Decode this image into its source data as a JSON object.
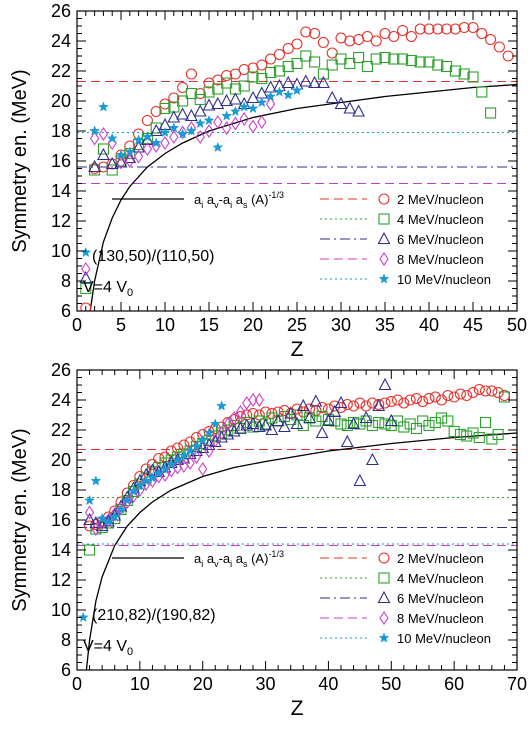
{
  "chart_data": [
    {
      "type": "scatter",
      "title": "",
      "xlabel": "Z",
      "ylabel": "Symmetry en. (MeV)",
      "xlim": [
        0,
        50
      ],
      "ylim": [
        6,
        26
      ],
      "xticks": [
        "0",
        "5",
        "10",
        "15",
        "20",
        "25",
        "30",
        "35",
        "40",
        "45",
        "50"
      ],
      "yticks": [
        "6",
        "8",
        "10",
        "12",
        "14",
        "16",
        "18",
        "20",
        "22",
        "24",
        "26"
      ],
      "grid": false,
      "legend_position": "bottom-right",
      "annotations": {
        "system": "(130,50)/(110,50)",
        "volume": "V=4 V",
        "volume_sub": "0"
      },
      "formula": {
        "main": "a",
        "s1": "i",
        "m2": " a",
        "s2": "v",
        "m3": "-a",
        "s3": "i",
        "m4": " a",
        "s4": "s",
        "m5": " (A)",
        "sup": "-1/3"
      },
      "curve": {
        "name": "a_i a_v - a_i a_s (A)^-1/3",
        "x": [
          1.5,
          2,
          3,
          4,
          5,
          6,
          8,
          10,
          12,
          15,
          20,
          25,
          30,
          35,
          40,
          45,
          50
        ],
        "y": [
          6.0,
          8.0,
          10.6,
          12.2,
          13.4,
          14.3,
          15.6,
          16.5,
          17.2,
          18.0,
          18.9,
          19.5,
          19.9,
          20.3,
          20.6,
          20.9,
          21.1
        ]
      },
      "series": [
        {
          "name": "2 MeV/nucleon",
          "marker": "circle",
          "color": "#e8302a",
          "baseline": 21.3,
          "x": [
            1,
            2,
            3,
            4,
            5,
            6,
            7,
            8,
            9,
            10,
            11,
            12,
            13,
            14,
            15,
            16,
            17,
            18,
            19,
            20,
            21,
            22,
            23,
            24,
            25,
            26,
            27,
            28,
            29,
            30,
            31,
            32,
            33,
            34,
            35,
            36,
            37,
            38,
            39,
            40,
            41,
            42,
            43,
            44,
            45,
            46,
            47,
            48,
            49
          ],
          "y": [
            6.2,
            15.5,
            15.6,
            15.8,
            16.4,
            17.0,
            17.8,
            18.7,
            19.3,
            19.8,
            20.2,
            20.9,
            21.8,
            20.5,
            21.2,
            21.4,
            21.7,
            21.8,
            22.1,
            22.2,
            22.4,
            22.8,
            23.1,
            23.5,
            23.8,
            24.6,
            24.5,
            23.9,
            23.2,
            24.2,
            24.0,
            24.1,
            24.3,
            24.0,
            24.5,
            24.3,
            24.7,
            24.3,
            24.8,
            24.8,
            24.8,
            24.8,
            24.8,
            24.9,
            24.9,
            24.5,
            24.1,
            23.6,
            23.0
          ]
        },
        {
          "name": "4 MeV/nucleon",
          "marker": "square",
          "color": "#2ea02e",
          "baseline": 17.9,
          "x": [
            1,
            2,
            3,
            4,
            5,
            6,
            7,
            8,
            9,
            10,
            11,
            12,
            13,
            14,
            15,
            16,
            17,
            18,
            19,
            20,
            21,
            22,
            23,
            24,
            25,
            26,
            27,
            28,
            29,
            30,
            31,
            32,
            33,
            34,
            35,
            36,
            37,
            38,
            39,
            40,
            41,
            42,
            43,
            44,
            45,
            46,
            47
          ],
          "y": [
            7.5,
            15.4,
            16.8,
            15.4,
            16.0,
            16.5,
            17.1,
            17.5,
            18.2,
            19.5,
            19.6,
            20.0,
            20.5,
            20.1,
            20.6,
            20.8,
            21.2,
            20.8,
            21.0,
            21.6,
            21.5,
            21.9,
            22.0,
            22.3,
            22.5,
            23.0,
            22.6,
            21.8,
            22.4,
            22.8,
            22.5,
            22.9,
            22.3,
            22.8,
            22.9,
            22.8,
            22.8,
            22.7,
            22.6,
            22.6,
            22.4,
            22.3,
            22.0,
            21.8,
            21.6,
            20.6,
            19.2
          ]
        },
        {
          "name": "6 MeV/nucleon",
          "marker": "triangle",
          "color": "#2e2e8c",
          "baseline": 15.6,
          "x": [
            1,
            2,
            3,
            4,
            5,
            6,
            7,
            8,
            9,
            10,
            11,
            12,
            13,
            14,
            15,
            16,
            17,
            18,
            19,
            20,
            21,
            22,
            23,
            24,
            25,
            26,
            27,
            28,
            29,
            30,
            31,
            32
          ],
          "y": [
            8.2,
            15.6,
            16.4,
            15.8,
            15.9,
            16.2,
            16.9,
            17.4,
            18.0,
            18.4,
            18.9,
            19.1,
            19.0,
            19.3,
            19.7,
            19.8,
            20.0,
            20.1,
            19.8,
            20.2,
            20.5,
            20.9,
            21.0,
            21.2,
            21.1,
            21.3,
            21.2,
            21.2,
            20.2,
            19.8,
            19.5,
            19.3
          ]
        },
        {
          "name": "8 MeV/nucleon",
          "marker": "diamond",
          "color": "#cc3ccc",
          "baseline": 14.5,
          "x": [
            1,
            2,
            3,
            4,
            5,
            6,
            7,
            8,
            9,
            10,
            11,
            12,
            13,
            14,
            15,
            16,
            17,
            18,
            19,
            20,
            21,
            22
          ],
          "y": [
            8.8,
            17.5,
            17.8,
            17.2,
            15.9,
            16.0,
            16.3,
            16.8,
            17.0,
            17.2,
            17.6,
            17.9,
            18.2,
            17.6,
            18.0,
            18.6,
            18.2,
            18.5,
            18.8,
            18.3,
            18.6,
            19.8
          ]
        },
        {
          "name": "10 MeV/nucleon",
          "marker": "star",
          "color": "#1a9ad6",
          "baseline": 17.9,
          "x": [
            1,
            2,
            3,
            4,
            5,
            6,
            7,
            8,
            9,
            10,
            11,
            12,
            13,
            14,
            15,
            16,
            17,
            18,
            19,
            20,
            21,
            22,
            23,
            24,
            25
          ],
          "y": [
            9.9,
            18.0,
            19.6,
            17.5,
            16.4,
            16.6,
            17.4,
            17.6,
            17.2,
            17.9,
            18.2,
            17.8,
            18.0,
            18.5,
            18.7,
            16.9,
            19.0,
            19.3,
            19.6,
            19.5,
            19.9,
            20.3,
            20.6,
            20.4,
            20.7
          ]
        }
      ]
    },
    {
      "type": "scatter",
      "title": "",
      "xlabel": "Z",
      "ylabel": "Symmetry en. (MeV)",
      "xlim": [
        0,
        70
      ],
      "ylim": [
        6,
        26
      ],
      "xticks": [
        "0",
        "10",
        "20",
        "30",
        "40",
        "50",
        "60",
        "70"
      ],
      "yticks": [
        "6",
        "8",
        "10",
        "12",
        "14",
        "16",
        "18",
        "20",
        "22",
        "24",
        "26"
      ],
      "grid": false,
      "legend_position": "bottom-right",
      "annotations": {
        "system": "(210,82)/(190,82)",
        "volume": "V=4 V",
        "volume_sub": "0"
      },
      "formula": {
        "main": "a",
        "s1": "i",
        "m2": " a",
        "s2": "v",
        "m3": "-a",
        "s3": "i",
        "m4": " a",
        "s4": "s",
        "m5": " (A)",
        "sup": "-1/3"
      },
      "curve": {
        "name": "a_i a_v - a_i a_s (A)^-1/3",
        "x": [
          1.5,
          2,
          3,
          4,
          6,
          8,
          10,
          12,
          15,
          20,
          25,
          30,
          40,
          50,
          60,
          70
        ],
        "y": [
          6.0,
          8.0,
          10.6,
          12.2,
          14.3,
          15.6,
          16.5,
          17.2,
          18.0,
          18.9,
          19.5,
          19.9,
          20.6,
          21.1,
          21.5,
          21.8
        ]
      },
      "series": [
        {
          "name": "2 MeV/nucleon",
          "marker": "circle",
          "color": "#e8302a",
          "baseline": 20.7,
          "x": [
            2,
            3,
            4,
            5,
            6,
            7,
            8,
            9,
            10,
            11,
            12,
            13,
            14,
            15,
            16,
            17,
            18,
            19,
            20,
            21,
            22,
            23,
            24,
            25,
            26,
            27,
            28,
            29,
            30,
            31,
            32,
            33,
            34,
            35,
            36,
            37,
            38,
            39,
            40,
            41,
            42,
            43,
            44,
            45,
            46,
            47,
            48,
            49,
            50,
            51,
            52,
            53,
            54,
            55,
            56,
            57,
            58,
            59,
            60,
            61,
            62,
            63,
            64,
            65,
            66,
            67,
            68
          ],
          "y": [
            15.6,
            15.7,
            15.9,
            16.2,
            16.6,
            17.2,
            17.8,
            18.3,
            18.9,
            19.4,
            19.7,
            20.1,
            20.2,
            20.6,
            20.8,
            21.0,
            21.2,
            21.5,
            21.7,
            21.9,
            22.1,
            22.2,
            22.5,
            22.7,
            22.9,
            23.0,
            23.1,
            23.0,
            23.2,
            23.1,
            23.2,
            23.3,
            23.1,
            23.4,
            23.2,
            23.4,
            23.3,
            23.5,
            23.4,
            23.6,
            23.5,
            23.7,
            23.6,
            23.8,
            23.6,
            23.8,
            23.7,
            23.8,
            23.9,
            24.0,
            23.8,
            24.0,
            24.1,
            23.9,
            24.1,
            24.2,
            24.0,
            24.3,
            24.2,
            24.4,
            24.3,
            24.5,
            24.7,
            24.6,
            24.6,
            24.5,
            24.3
          ]
        },
        {
          "name": "4 MeV/nucleon",
          "marker": "square",
          "color": "#2ea02e",
          "baseline": 17.5,
          "x": [
            2,
            3,
            4,
            5,
            6,
            7,
            8,
            9,
            10,
            11,
            12,
            13,
            14,
            15,
            16,
            17,
            18,
            19,
            20,
            21,
            22,
            23,
            24,
            25,
            26,
            27,
            28,
            29,
            30,
            31,
            32,
            33,
            34,
            35,
            36,
            37,
            38,
            39,
            40,
            41,
            42,
            43,
            44,
            45,
            46,
            47,
            48,
            49,
            50,
            51,
            52,
            53,
            54,
            55,
            56,
            57,
            58,
            59,
            60,
            61,
            62,
            63,
            64,
            65,
            66,
            67,
            68
          ],
          "y": [
            14.0,
            15.4,
            15.5,
            15.8,
            16.1,
            16.7,
            17.3,
            17.9,
            18.4,
            18.8,
            19.2,
            19.5,
            19.8,
            20.0,
            20.2,
            20.4,
            20.6,
            20.9,
            21.1,
            21.3,
            21.6,
            21.8,
            22.0,
            22.3,
            22.1,
            22.5,
            22.2,
            22.6,
            22.4,
            22.8,
            22.6,
            22.9,
            22.7,
            23.0,
            22.3,
            22.8,
            22.6,
            22.9,
            22.7,
            22.6,
            22.4,
            22.3,
            22.5,
            22.4,
            22.6,
            22.3,
            22.5,
            22.4,
            22.3,
            22.6,
            22.2,
            22.4,
            22.1,
            22.6,
            22.3,
            22.5,
            22.8,
            22.6,
            21.9,
            21.7,
            21.6,
            21.8,
            21.5,
            22.5,
            21.4,
            21.7,
            24.2
          ]
        },
        {
          "name": "6 MeV/nucleon",
          "marker": "triangle",
          "color": "#2e2e8c",
          "baseline": 15.5,
          "x": [
            2,
            3,
            4,
            5,
            6,
            7,
            8,
            9,
            10,
            11,
            12,
            13,
            14,
            15,
            16,
            17,
            18,
            19,
            20,
            21,
            22,
            23,
            24,
            25,
            26,
            27,
            28,
            29,
            30,
            31,
            32,
            33,
            34,
            35,
            36,
            37,
            38,
            39,
            40,
            41,
            42,
            43,
            44,
            45,
            46,
            47,
            48,
            49,
            50
          ],
          "y": [
            16.0,
            15.8,
            15.6,
            15.9,
            16.3,
            16.9,
            17.5,
            18.1,
            18.6,
            19.0,
            19.3,
            19.2,
            19.5,
            19.8,
            20.0,
            20.1,
            20.4,
            20.6,
            20.8,
            21.0,
            21.2,
            21.5,
            21.7,
            21.9,
            22.1,
            22.3,
            22.4,
            22.2,
            22.3,
            22.0,
            22.6,
            22.2,
            23.1,
            22.4,
            23.6,
            22.8,
            23.9,
            21.8,
            22.6,
            23.2,
            23.8,
            21.2,
            22.4,
            18.6,
            22.8,
            20.0,
            23.6,
            25.0,
            22.6
          ]
        },
        {
          "name": "8 MeV/nucleon",
          "marker": "diamond",
          "color": "#cc3ccc",
          "baseline": 14.3,
          "x": [
            2,
            3,
            4,
            5,
            6,
            7,
            8,
            9,
            10,
            11,
            12,
            13,
            14,
            15,
            16,
            17,
            18,
            19,
            20,
            21,
            22,
            23,
            24,
            25,
            26,
            27,
            28,
            29
          ],
          "y": [
            16.5,
            15.4,
            15.8,
            16.0,
            16.4,
            16.8,
            17.2,
            17.6,
            18.0,
            18.4,
            18.6,
            18.9,
            19.0,
            19.3,
            19.5,
            19.6,
            19.8,
            20.2,
            19.4,
            20.6,
            21.3,
            21.8,
            22.4,
            22.8,
            23.2,
            23.8,
            24.0,
            24.0
          ]
        },
        {
          "name": "10 MeV/nucleon",
          "marker": "star",
          "color": "#1a9ad6",
          "baseline": 14.4,
          "x": [
            1,
            2,
            3,
            4,
            5,
            6,
            7,
            8,
            9,
            10,
            11,
            12,
            13,
            14,
            15,
            16,
            17,
            18,
            19,
            20,
            21,
            22,
            23
          ],
          "y": [
            9.5,
            17.3,
            18.6,
            16.1,
            15.9,
            16.2,
            16.7,
            17.3,
            17.9,
            18.3,
            18.6,
            18.8,
            19.1,
            19.4,
            19.7,
            20.0,
            20.3,
            20.6,
            20.9,
            21.3,
            21.8,
            22.4,
            23.6
          ]
        }
      ]
    }
  ]
}
